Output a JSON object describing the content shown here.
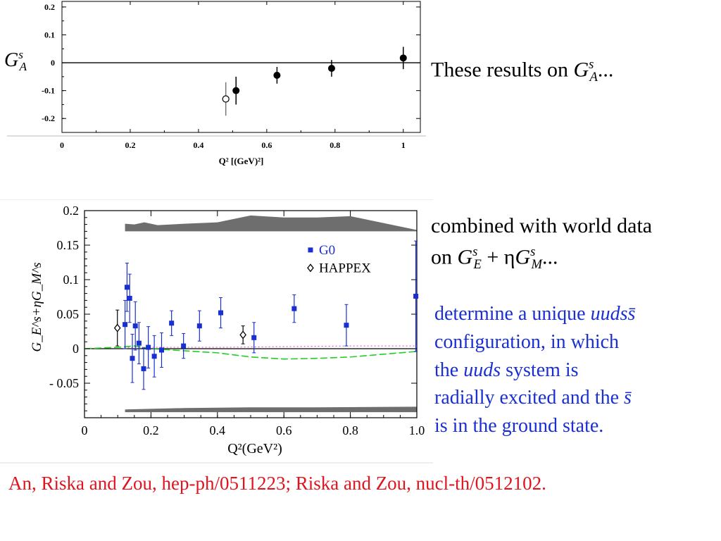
{
  "chart_data": [
    {
      "type": "scatter",
      "ylabel": "G_A^s",
      "xlabel": "Q² [(GeV)²]",
      "xlim": [
        0,
        1.05
      ],
      "ylim": [
        -0.25,
        0.22
      ],
      "xticks": [
        "0",
        "0.2",
        "0.4",
        "0.6",
        "0.8",
        "1"
      ],
      "yticks": [
        "0.2",
        "0.1",
        "0",
        "-0.1",
        "-0.2"
      ],
      "series": [
        {
          "marker": "filled-circle",
          "points": [
            {
              "x": 0.51,
              "y": -0.1,
              "err": 0.05
            },
            {
              "x": 0.63,
              "y": -0.045,
              "err": 0.03
            },
            {
              "x": 0.79,
              "y": -0.02,
              "err": 0.03
            },
            {
              "x": 1.0,
              "y": 0.017,
              "err": 0.04
            }
          ]
        },
        {
          "marker": "open-circle",
          "points": [
            {
              "x": 0.48,
              "y": -0.13,
              "err": 0.06
            }
          ]
        }
      ],
      "grid": false
    },
    {
      "type": "scatter",
      "ylabel": "G_E^s+ηG_M^s",
      "xlabel": "Q²(GeV²)",
      "xlim": [
        0,
        1.0
      ],
      "ylim": [
        -0.1,
        0.2
      ],
      "xticks": [
        "0",
        "0.2",
        "0.4",
        "0.6",
        "0.8",
        "1.0"
      ],
      "yticks": [
        "0.2",
        "0.15",
        "0.1",
        "0.05",
        "0",
        "- 0.05"
      ],
      "legend": {
        "placement": "top-right",
        "entries": [
          "G0",
          "HAPPEX"
        ]
      },
      "series": [
        {
          "name": "G0",
          "marker": "blue-square",
          "points": [
            {
              "x": 0.122,
              "y": 0.035,
              "err": 0.035
            },
            {
              "x": 0.128,
              "y": 0.089,
              "err": 0.035
            },
            {
              "x": 0.136,
              "y": 0.073,
              "err": 0.035
            },
            {
              "x": 0.144,
              "y": -0.014,
              "err": 0.035
            },
            {
              "x": 0.153,
              "y": 0.033,
              "err": 0.035
            },
            {
              "x": 0.164,
              "y": 0.008,
              "err": 0.03
            },
            {
              "x": 0.178,
              "y": -0.029,
              "err": 0.03
            },
            {
              "x": 0.192,
              "y": 0.002,
              "err": 0.03
            },
            {
              "x": 0.21,
              "y": -0.011,
              "err": 0.03
            },
            {
              "x": 0.232,
              "y": -0.002,
              "err": 0.025
            },
            {
              "x": 0.262,
              "y": 0.037,
              "err": 0.018
            },
            {
              "x": 0.298,
              "y": 0.004,
              "err": 0.018
            },
            {
              "x": 0.346,
              "y": 0.033,
              "err": 0.022
            },
            {
              "x": 0.41,
              "y": 0.052,
              "err": 0.022
            },
            {
              "x": 0.51,
              "y": 0.016,
              "err": 0.022
            },
            {
              "x": 0.631,
              "y": 0.058,
              "err": 0.02
            },
            {
              "x": 0.788,
              "y": 0.034,
              "err": 0.03
            },
            {
              "x": 0.997,
              "y": 0.076,
              "err": 0.08
            }
          ]
        },
        {
          "name": "HAPPEX",
          "marker": "open-diamond",
          "points": [
            {
              "x": 0.099,
              "y": 0.03,
              "err": 0.026
            },
            {
              "x": 0.477,
              "y": 0.02,
              "err": 0.013
            }
          ]
        }
      ],
      "curves": {
        "green_dashed": [
          [
            0.0,
            0.0
          ],
          [
            0.1,
            0.002
          ],
          [
            0.15,
            0.004
          ],
          [
            0.2,
            0.0
          ],
          [
            0.3,
            -0.003
          ],
          [
            0.4,
            -0.006
          ],
          [
            0.5,
            -0.012
          ],
          [
            0.6,
            -0.015
          ],
          [
            0.7,
            -0.014
          ],
          [
            0.8,
            -0.012
          ],
          [
            0.9,
            -0.008
          ],
          [
            1.0,
            -0.004
          ]
        ],
        "magenta_dotted": [
          [
            0.12,
            0.002
          ],
          [
            0.4,
            0.002
          ],
          [
            0.6,
            0.003
          ],
          [
            0.8,
            0.004
          ],
          [
            1.0,
            0.004
          ]
        ]
      },
      "bands": {
        "top": {
          "base": 0.17,
          "upper": [
            [
              0.122,
              0.181
            ],
            [
              0.15,
              0.18
            ],
            [
              0.18,
              0.183
            ],
            [
              0.22,
              0.179
            ],
            [
              0.3,
              0.181
            ],
            [
              0.4,
              0.183
            ],
            [
              0.5,
              0.193
            ],
            [
              0.6,
              0.19
            ],
            [
              0.7,
              0.19
            ],
            [
              0.8,
              0.192
            ],
            [
              1.0,
              0.172
            ]
          ]
        },
        "bottom": {
          "base": -0.092,
          "upper": [
            [
              0.122,
              -0.088
            ],
            [
              0.3,
              -0.086
            ],
            [
              0.5,
              -0.085
            ],
            [
              0.7,
              -0.085
            ],
            [
              1.0,
              -0.084
            ]
          ]
        }
      },
      "grid": false
    }
  ],
  "text": {
    "results_text": "These results on",
    "ellipsis": "...",
    "combined_line1": "combined with world data",
    "combined_on": "on",
    "determine_line1_pre": "determine a unique",
    "determine_line1_italic": "uuds",
    "sbar": "s̄",
    "line2": "configuration, in which",
    "line3_pre": "the",
    "line3_italic": "uuds",
    "line3_post": "system is",
    "line4": "radially excited and the",
    "line5": "is in the ground state.",
    "citation": "An, Riska and Zou, hep-ph/0511223; Riska and Zou, nucl-th/0512102.",
    "G": "G",
    "s": "s",
    "A": "A",
    "E": "E",
    "M": "M",
    "plus_eta": "+ η"
  },
  "colors": {
    "blue": "#1a2fd0",
    "red": "#e0141e",
    "band": "#6e6e6e",
    "green": "#22d022",
    "magenta": "#e040d0"
  }
}
